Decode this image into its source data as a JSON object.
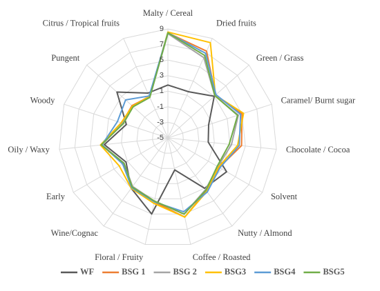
{
  "chart_data": {
    "type": "radar",
    "categories": [
      "Malty / Cereal",
      "Dried fruits",
      "Green / Grass",
      "Caramel/ Burnt sugar",
      "Chocolate / Cocoa",
      "Solvent",
      "Nutty / Almond",
      "Coffee / Roasted",
      "Floral / Fruity",
      "Wine/Cognac",
      "Early",
      "Oily / Waxy",
      "Woody",
      "Pungent",
      "Citrus / Tropical fruits"
    ],
    "rlim": [
      -5,
      9
    ],
    "rticks": [
      9,
      7,
      5,
      3,
      1,
      -1,
      -3,
      -5
    ],
    "grid": true,
    "legend": "bottom",
    "series": [
      {
        "name": "WF",
        "color": "#595959",
        "values": [
          1.8,
          1.5,
          3.0,
          0.5,
          0.2,
          3.7,
          3.0,
          -0.8,
          5.0,
          3.0,
          1.2,
          3.2,
          0.6,
          3.8,
          1.3
        ]
      },
      {
        "name": "BSG 1",
        "color": "#ed7d31",
        "values": [
          8.5,
          7.2,
          3.2,
          5.0,
          4.5,
          2.6,
          3.4,
          5.4,
          3.4,
          2.8,
          1.6,
          3.6,
          1.2,
          1.2,
          0.8
        ]
      },
      {
        "name": "BSG 2",
        "color": "#a5a5a5",
        "values": [
          8.4,
          6.3,
          3.1,
          4.5,
          3.2,
          2.4,
          3.2,
          5.0,
          3.3,
          2.7,
          1.5,
          3.5,
          1.1,
          1.0,
          0.7
        ]
      },
      {
        "name": "BSG3",
        "color": "#ffc000",
        "values": [
          8.6,
          8.4,
          3.2,
          5.2,
          4.0,
          2.5,
          3.5,
          5.4,
          3.6,
          3.0,
          2.2,
          3.7,
          1.3,
          1.1,
          0.8
        ]
      },
      {
        "name": "BSG4",
        "color": "#5b9bd5",
        "values": [
          8.5,
          6.9,
          3.3,
          4.8,
          4.2,
          2.7,
          3.6,
          4.7,
          3.4,
          2.9,
          1.7,
          3.5,
          1.8,
          2.3,
          0.9
        ]
      },
      {
        "name": "BSG5",
        "color": "#70ad47",
        "values": [
          8.5,
          6.6,
          3.1,
          4.4,
          2.9,
          2.3,
          3.3,
          5.0,
          3.3,
          2.8,
          1.5,
          3.6,
          1.0,
          1.0,
          0.7
        ]
      }
    ]
  }
}
